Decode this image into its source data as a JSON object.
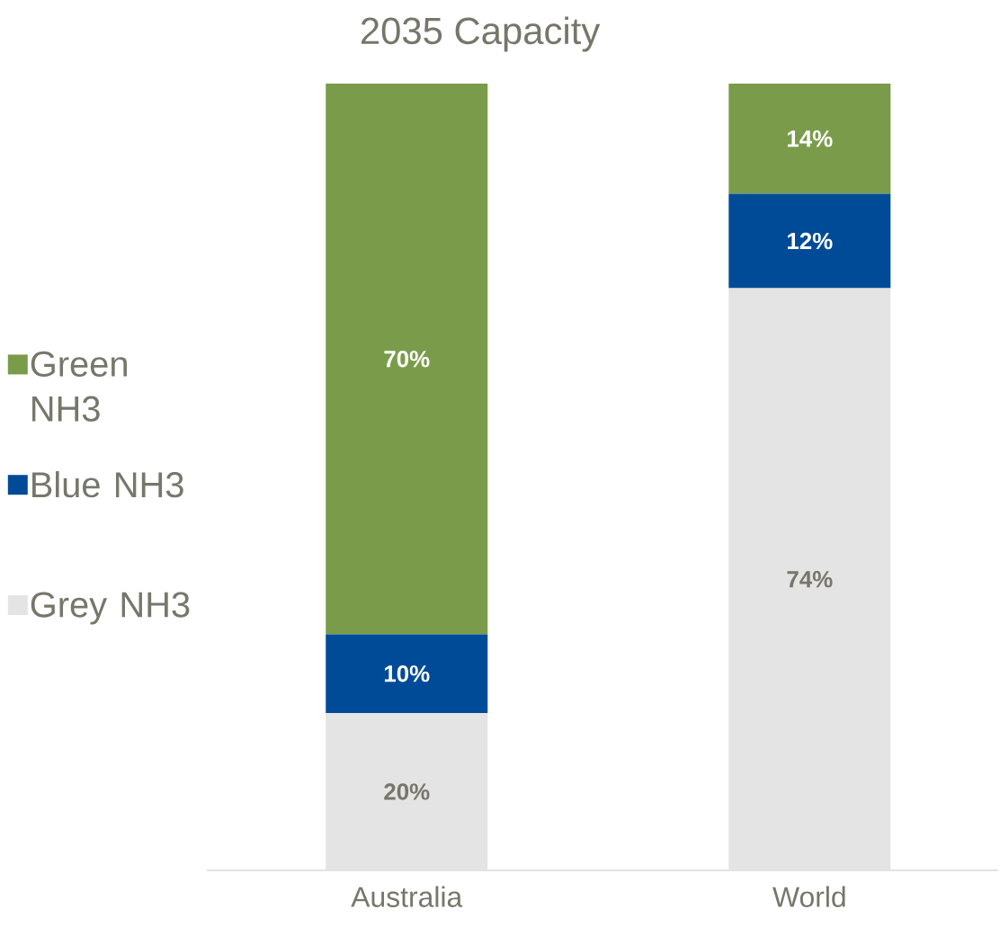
{
  "chart_data": {
    "type": "bar",
    "title": "2035 Capacity",
    "stacked": true,
    "categories": [
      "Australia",
      "World"
    ],
    "ylim": [
      0,
      100
    ],
    "tick_labels": "x",
    "legend": "left",
    "series": [
      {
        "name": "Grey NH3",
        "color": "#e4e4e4",
        "values": [
          20,
          74
        ],
        "value_labels": [
          "20%",
          "74%"
        ]
      },
      {
        "name": "Blue NH3",
        "color": "#004b98",
        "values": [
          10,
          12
        ],
        "value_labels": [
          "10%",
          "12%"
        ]
      },
      {
        "name": "Green NH3",
        "color": "#7a9c4a",
        "values": [
          70,
          14
        ],
        "value_labels": [
          "70%",
          "14%"
        ]
      }
    ]
  }
}
